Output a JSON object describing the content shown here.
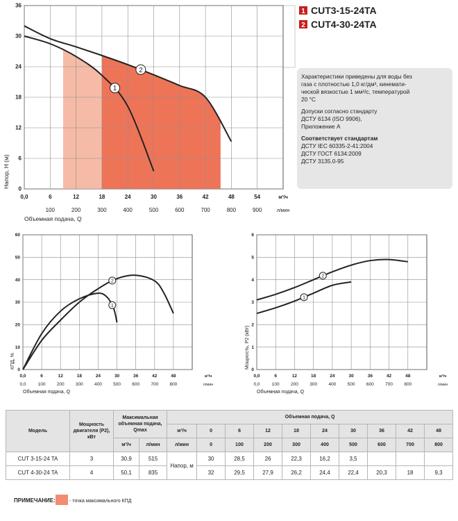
{
  "legend": [
    {
      "number": "1",
      "name": "CUT3-15-24TA"
    },
    {
      "number": "2",
      "name": "CUT4-30-24TA"
    }
  ],
  "info": {
    "paragraph": [
      "Характеристики приведены для воды без",
      "газа с плотностью 1,0 кг/дм³, кинемати-",
      "ческой вязкостью 1 мм²/с, температурой",
      "20 °С"
    ],
    "tolerance": [
      "Допуски согласно стандарту",
      "ДСТУ 6134 (ISO 9906),",
      "Приложение А"
    ],
    "standards_title": "Соответствует стандартам",
    "standards": [
      "ДСТУ IEC 60335-2-41:2004",
      "ДСТУ ГОСТ 6134:2009",
      "ДСТУ 3135.0-95"
    ]
  },
  "chart_data": [
    {
      "type": "line",
      "x_label": "Объемная подача, Q",
      "y_label": "Напор, Н (м)",
      "x_unit": "м³/ч",
      "x2_unit": "л/мин",
      "xlim": [
        0,
        60
      ],
      "xticks": [
        {
          "value": 0,
          "label": "0,0"
        },
        6,
        12,
        18,
        24,
        30,
        36,
        42,
        48,
        54
      ],
      "x2lim": [
        0,
        1000
      ],
      "x2ticks": [
        100,
        200,
        300,
        400,
        500,
        600,
        700,
        800,
        900
      ],
      "ylim": [
        0,
        36
      ],
      "yticks": [
        0,
        6,
        12,
        18,
        24,
        30,
        36
      ],
      "grid": true,
      "series": [
        {
          "name": "CUT3-15-24TA",
          "label": "1",
          "color": "#222222",
          "x": [
            0,
            6,
            12,
            18,
            24,
            30
          ],
          "values": [
            30,
            28.5,
            26,
            22.3,
            16.2,
            3.5
          ],
          "shade": [
            9,
            26.5
          ],
          "shade_color": "#f6bba6"
        },
        {
          "name": "CUT4-30-24TA",
          "label": "2",
          "color": "#222222",
          "x": [
            0,
            6,
            12,
            18,
            24,
            30,
            36,
            42,
            48
          ],
          "values": [
            32,
            29.5,
            27.9,
            26.2,
            24.4,
            22.4,
            20.3,
            18,
            9.3
          ],
          "shade": [
            18,
            45.5
          ],
          "shade_color": "#ee7458"
        }
      ]
    },
    {
      "type": "line",
      "x_label": "Объемная подача, Q",
      "y_label": "КПД, %",
      "x_unit": "м³/ч",
      "x2_unit": "л/мин",
      "xlim": [
        0,
        54
      ],
      "xticks": [
        {
          "value": 0,
          "label": "0,0"
        },
        6,
        12,
        18,
        24,
        30,
        36,
        42,
        48
      ],
      "x2lim": [
        0,
        900
      ],
      "x2ticks": [
        {
          "value": 0,
          "label": "0,0"
        },
        100,
        200,
        300,
        400,
        500,
        600,
        700,
        800
      ],
      "ylim": [
        0,
        60
      ],
      "yticks": [
        0,
        10,
        20,
        30,
        40,
        50,
        60
      ],
      "grid": true,
      "series": [
        {
          "label": "1",
          "color": "#222222",
          "x": [
            0,
            6,
            12,
            18,
            24,
            27,
            29,
            30
          ],
          "values": [
            0,
            16,
            26,
            31.5,
            34,
            32,
            27,
            21
          ]
        },
        {
          "label": "2",
          "color": "#222222",
          "x": [
            0,
            6,
            12,
            18,
            24,
            30,
            36,
            42,
            45,
            48
          ],
          "values": [
            0,
            13,
            22,
            30,
            36,
            40.5,
            42,
            39.5,
            34,
            25
          ]
        }
      ]
    },
    {
      "type": "line",
      "x_label": "Объемная подача, Q",
      "y_label": "Мощность, P2 (кВт)",
      "x_unit": "м³/ч",
      "x2_unit": "л/мин",
      "xlim": [
        0,
        54
      ],
      "xticks": [
        {
          "value": 0,
          "label": "0,0"
        },
        6,
        12,
        18,
        24,
        30,
        36,
        42,
        48
      ],
      "x2lim": [
        0,
        900
      ],
      "x2ticks": [
        {
          "value": 0,
          "label": "0,0"
        },
        100,
        200,
        300,
        400,
        500,
        600,
        700,
        800
      ],
      "ylim": [
        0,
        6
      ],
      "yticks": [
        0,
        1,
        2,
        3,
        4,
        5,
        6
      ],
      "grid": true,
      "series": [
        {
          "label": "1",
          "color": "#222222",
          "x": [
            0,
            6,
            12,
            18,
            24,
            30
          ],
          "values": [
            2.5,
            2.75,
            3.05,
            3.4,
            3.75,
            3.9
          ]
        },
        {
          "label": "2",
          "color": "#222222",
          "x": [
            0,
            6,
            12,
            18,
            24,
            30,
            36,
            42,
            48
          ],
          "values": [
            3.1,
            3.35,
            3.65,
            4.0,
            4.35,
            4.65,
            4.85,
            4.9,
            4.8
          ]
        }
      ]
    }
  ],
  "table": {
    "headers": {
      "model": "Модель",
      "power": "Мощность двигателя (P2), кВт",
      "qmax": "Максимальная объемная подача, Qmax",
      "qmax_units": [
        "м³/ч",
        "л/мин"
      ],
      "flow": "Объемная подача, Q",
      "flow_units": [
        "м³/ч",
        "л/мин"
      ],
      "flow_m3h": [
        "0",
        "6",
        "12",
        "18",
        "24",
        "30",
        "36",
        "42",
        "48"
      ],
      "flow_lmin": [
        "0",
        "100",
        "200",
        "300",
        "400",
        "500",
        "600",
        "700",
        "800"
      ]
    },
    "head_label": "Напор, м",
    "rows": [
      {
        "model": "CUT 3-15-24 TA",
        "power": "3",
        "qmax_m3h": "30,9",
        "qmax_lmin": "515",
        "heads": [
          "30",
          "28,5",
          "26",
          "22,3",
          "16,2",
          "3,5"
        ]
      },
      {
        "model": "CUT 4-30-24 TA",
        "power": "4",
        "qmax_m3h": "50,1",
        "qmax_lmin": "835",
        "heads": [
          "32",
          "29,5",
          "27,9",
          "26,2",
          "24,4",
          "22,4",
          "20,3",
          "18",
          "9,3"
        ]
      }
    ]
  },
  "note": {
    "label": "ПРИМЕЧАНИЕ:",
    "text": "- точка максимального КПД",
    "color": "#f38c72"
  }
}
